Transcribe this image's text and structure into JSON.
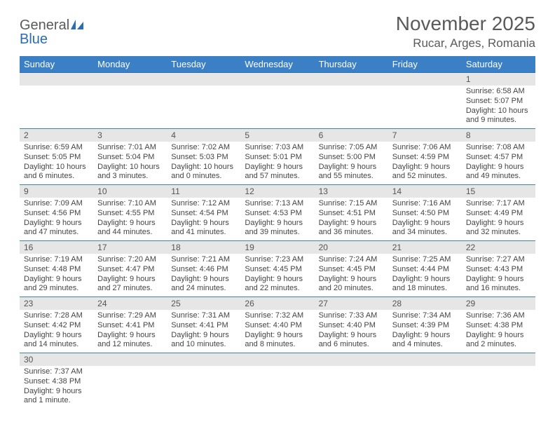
{
  "logo": {
    "word1": "General",
    "word2": "Blue"
  },
  "header": {
    "title": "November 2025",
    "location": "Rucar, Arges, Romania"
  },
  "styling": {
    "page_bg": "#ffffff",
    "header_text_color": "#5a5a5a",
    "dayheader_bg": "#3b7fc4",
    "dayheader_fg": "#ffffff",
    "daynum_bg": "#e6e6e6",
    "cell_border_color": "#3b7fc4",
    "body_text_color": "#444444",
    "logo_blue": "#2a6db0",
    "title_fontsize_pt": 21,
    "location_fontsize_pt": 13,
    "dayheader_fontsize_pt": 10,
    "daybody_fontsize_pt": 8
  },
  "weekdays": [
    "Sunday",
    "Monday",
    "Tuesday",
    "Wednesday",
    "Thursday",
    "Friday",
    "Saturday"
  ],
  "weeks": [
    [
      null,
      null,
      null,
      null,
      null,
      null,
      {
        "n": "1",
        "sr": "Sunrise: 6:58 AM",
        "ss": "Sunset: 5:07 PM",
        "dl": "Daylight: 10 hours and 9 minutes."
      }
    ],
    [
      {
        "n": "2",
        "sr": "Sunrise: 6:59 AM",
        "ss": "Sunset: 5:05 PM",
        "dl": "Daylight: 10 hours and 6 minutes."
      },
      {
        "n": "3",
        "sr": "Sunrise: 7:01 AM",
        "ss": "Sunset: 5:04 PM",
        "dl": "Daylight: 10 hours and 3 minutes."
      },
      {
        "n": "4",
        "sr": "Sunrise: 7:02 AM",
        "ss": "Sunset: 5:03 PM",
        "dl": "Daylight: 10 hours and 0 minutes."
      },
      {
        "n": "5",
        "sr": "Sunrise: 7:03 AM",
        "ss": "Sunset: 5:01 PM",
        "dl": "Daylight: 9 hours and 57 minutes."
      },
      {
        "n": "6",
        "sr": "Sunrise: 7:05 AM",
        "ss": "Sunset: 5:00 PM",
        "dl": "Daylight: 9 hours and 55 minutes."
      },
      {
        "n": "7",
        "sr": "Sunrise: 7:06 AM",
        "ss": "Sunset: 4:59 PM",
        "dl": "Daylight: 9 hours and 52 minutes."
      },
      {
        "n": "8",
        "sr": "Sunrise: 7:08 AM",
        "ss": "Sunset: 4:57 PM",
        "dl": "Daylight: 9 hours and 49 minutes."
      }
    ],
    [
      {
        "n": "9",
        "sr": "Sunrise: 7:09 AM",
        "ss": "Sunset: 4:56 PM",
        "dl": "Daylight: 9 hours and 47 minutes."
      },
      {
        "n": "10",
        "sr": "Sunrise: 7:10 AM",
        "ss": "Sunset: 4:55 PM",
        "dl": "Daylight: 9 hours and 44 minutes."
      },
      {
        "n": "11",
        "sr": "Sunrise: 7:12 AM",
        "ss": "Sunset: 4:54 PM",
        "dl": "Daylight: 9 hours and 41 minutes."
      },
      {
        "n": "12",
        "sr": "Sunrise: 7:13 AM",
        "ss": "Sunset: 4:53 PM",
        "dl": "Daylight: 9 hours and 39 minutes."
      },
      {
        "n": "13",
        "sr": "Sunrise: 7:15 AM",
        "ss": "Sunset: 4:51 PM",
        "dl": "Daylight: 9 hours and 36 minutes."
      },
      {
        "n": "14",
        "sr": "Sunrise: 7:16 AM",
        "ss": "Sunset: 4:50 PM",
        "dl": "Daylight: 9 hours and 34 minutes."
      },
      {
        "n": "15",
        "sr": "Sunrise: 7:17 AM",
        "ss": "Sunset: 4:49 PM",
        "dl": "Daylight: 9 hours and 32 minutes."
      }
    ],
    [
      {
        "n": "16",
        "sr": "Sunrise: 7:19 AM",
        "ss": "Sunset: 4:48 PM",
        "dl": "Daylight: 9 hours and 29 minutes."
      },
      {
        "n": "17",
        "sr": "Sunrise: 7:20 AM",
        "ss": "Sunset: 4:47 PM",
        "dl": "Daylight: 9 hours and 27 minutes."
      },
      {
        "n": "18",
        "sr": "Sunrise: 7:21 AM",
        "ss": "Sunset: 4:46 PM",
        "dl": "Daylight: 9 hours and 24 minutes."
      },
      {
        "n": "19",
        "sr": "Sunrise: 7:23 AM",
        "ss": "Sunset: 4:45 PM",
        "dl": "Daylight: 9 hours and 22 minutes."
      },
      {
        "n": "20",
        "sr": "Sunrise: 7:24 AM",
        "ss": "Sunset: 4:45 PM",
        "dl": "Daylight: 9 hours and 20 minutes."
      },
      {
        "n": "21",
        "sr": "Sunrise: 7:25 AM",
        "ss": "Sunset: 4:44 PM",
        "dl": "Daylight: 9 hours and 18 minutes."
      },
      {
        "n": "22",
        "sr": "Sunrise: 7:27 AM",
        "ss": "Sunset: 4:43 PM",
        "dl": "Daylight: 9 hours and 16 minutes."
      }
    ],
    [
      {
        "n": "23",
        "sr": "Sunrise: 7:28 AM",
        "ss": "Sunset: 4:42 PM",
        "dl": "Daylight: 9 hours and 14 minutes."
      },
      {
        "n": "24",
        "sr": "Sunrise: 7:29 AM",
        "ss": "Sunset: 4:41 PM",
        "dl": "Daylight: 9 hours and 12 minutes."
      },
      {
        "n": "25",
        "sr": "Sunrise: 7:31 AM",
        "ss": "Sunset: 4:41 PM",
        "dl": "Daylight: 9 hours and 10 minutes."
      },
      {
        "n": "26",
        "sr": "Sunrise: 7:32 AM",
        "ss": "Sunset: 4:40 PM",
        "dl": "Daylight: 9 hours and 8 minutes."
      },
      {
        "n": "27",
        "sr": "Sunrise: 7:33 AM",
        "ss": "Sunset: 4:40 PM",
        "dl": "Daylight: 9 hours and 6 minutes."
      },
      {
        "n": "28",
        "sr": "Sunrise: 7:34 AM",
        "ss": "Sunset: 4:39 PM",
        "dl": "Daylight: 9 hours and 4 minutes."
      },
      {
        "n": "29",
        "sr": "Sunrise: 7:36 AM",
        "ss": "Sunset: 4:38 PM",
        "dl": "Daylight: 9 hours and 2 minutes."
      }
    ],
    [
      {
        "n": "30",
        "sr": "Sunrise: 7:37 AM",
        "ss": "Sunset: 4:38 PM",
        "dl": "Daylight: 9 hours and 1 minute."
      },
      null,
      null,
      null,
      null,
      null,
      null
    ]
  ]
}
